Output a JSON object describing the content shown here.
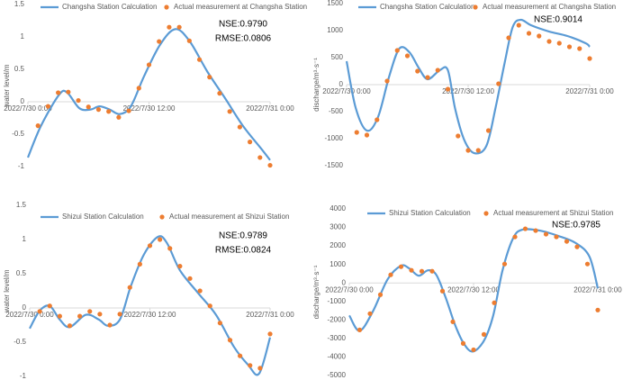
{
  "chart_data": [
    {
      "type": "line",
      "y_label": "water level/m",
      "annotations": [
        "NSE:0.9790",
        "RMSE:0.0806"
      ],
      "xlim": [
        0,
        24
      ],
      "xticks": [
        {
          "value": 0,
          "label": "2022/7/30 0:00"
        },
        {
          "value": 12,
          "label": "2022/7/30 12:00"
        },
        {
          "value": 24,
          "label": "2022/7/31 0:00"
        }
      ],
      "ylim": [
        -1,
        1.5
      ],
      "yticks": [
        -1,
        -0.5,
        0,
        0.5,
        1,
        1.5
      ],
      "series": [
        {
          "name": "Changsha Station Calculation",
          "color": "#5b9bd5",
          "mode": "line",
          "x": [
            0,
            1.3,
            3.1,
            3.9,
            5.1,
            6.2,
            7.1,
            8.1,
            9.1,
            10.2,
            11.5,
            13.1,
            14.6,
            16.0,
            17.8,
            19.6,
            21.3,
            23.1,
            24
          ],
          "values": [
            -0.86,
            -0.37,
            0.11,
            0.14,
            -0.1,
            -0.12,
            -0.07,
            -0.12,
            -0.19,
            -0.07,
            0.39,
            0.88,
            1.12,
            0.94,
            0.46,
            0.04,
            -0.37,
            -0.72,
            -0.9
          ]
        },
        {
          "name": "Actual measurement at Changsha Station",
          "color": "#ed7d31",
          "mode": "markers",
          "x": [
            1,
            2,
            3,
            4,
            5,
            6,
            7,
            8,
            9,
            10,
            11,
            12,
            13,
            14,
            15,
            16,
            17,
            18,
            19,
            20,
            21,
            22,
            23,
            24
          ],
          "values": [
            -0.37,
            -0.07,
            0.14,
            0.15,
            0.02,
            -0.08,
            -0.12,
            -0.15,
            -0.24,
            -0.14,
            0.21,
            0.57,
            0.93,
            1.15,
            1.15,
            0.94,
            0.65,
            0.38,
            0.13,
            -0.15,
            -0.39,
            -0.62,
            -0.86,
            -0.98
          ]
        }
      ]
    },
    {
      "type": "line",
      "y_label": "discharge/m³·s⁻¹",
      "annotations": [
        "NSE:0.9014"
      ],
      "xlim": [
        0,
        24
      ],
      "xticks": [
        {
          "value": 0,
          "label": "2022/7/30 0:00"
        },
        {
          "value": 12,
          "label": "2022/7/30 12:00"
        },
        {
          "value": 24,
          "label": "2022/7/31 0:00"
        }
      ],
      "ylim": [
        -1500,
        1500
      ],
      "yticks": [
        -1500,
        -1000,
        -500,
        0,
        500,
        1000,
        1500
      ],
      "series": [
        {
          "name": "Changsha Station Calculation",
          "color": "#5b9bd5",
          "mode": "line",
          "x": [
            0,
            0.9,
            2.0,
            3.1,
            4.2,
            5.2,
            6.2,
            7.1,
            8.0,
            9.2,
            10.0,
            10.7,
            11.6,
            12.6,
            13.8,
            14.7,
            15.6,
            16.4,
            17.2,
            18.2,
            20.0,
            21.8,
            23.6,
            24
          ],
          "values": [
            433,
            -433,
            -850,
            -600,
            150,
            667,
            600,
            317,
            100,
            267,
            267,
            -433,
            -1017,
            -1267,
            -1133,
            -433,
            400,
            1067,
            1200,
            1100,
            983,
            900,
            767,
            700
          ]
        },
        {
          "name": "Actual measurement at Changsha Station",
          "color": "#ed7d31",
          "mode": "markers",
          "x": [
            1,
            2,
            3,
            4,
            5,
            6,
            7,
            8,
            9,
            10,
            11,
            12,
            13,
            14,
            15,
            16,
            17,
            18,
            19,
            20,
            21,
            22,
            23,
            24
          ],
          "values": [
            -883,
            -933,
            -650,
            67,
            633,
            533,
            250,
            133,
            267,
            -83,
            -950,
            -1217,
            -1217,
            -850,
            17,
            867,
            1100,
            950,
            900,
            800,
            767,
            700,
            667,
            483
          ]
        }
      ]
    },
    {
      "type": "line",
      "y_label": "water level/m",
      "annotations": [
        "NSE:0.9789",
        "RMSE:0.0824"
      ],
      "xlim": [
        0,
        24
      ],
      "xticks": [
        {
          "value": 0,
          "label": "2022/7/30 0:00"
        },
        {
          "value": 12,
          "label": "2022/7/30 12:00"
        },
        {
          "value": 24,
          "label": "2022/7/31 0:00"
        }
      ],
      "ylim": [
        -1,
        1.5
      ],
      "yticks": [
        -1,
        -0.5,
        0,
        0.5,
        1,
        1.5
      ],
      "series": [
        {
          "name": "Shizui Station Calculation",
          "color": "#5b9bd5",
          "mode": "line",
          "x": [
            0,
            1,
            2,
            3,
            4,
            5.6,
            6.9,
            7.8,
            9,
            10.1,
            11.4,
            12.8,
            13.7,
            15,
            16.8,
            18.6,
            20.4,
            21.8,
            22.9,
            24
          ],
          "values": [
            -0.3,
            -0.04,
            0.03,
            -0.17,
            -0.28,
            -0.1,
            -0.17,
            -0.26,
            -0.17,
            0.32,
            0.78,
            1.04,
            0.95,
            0.55,
            0.22,
            -0.1,
            -0.57,
            -0.83,
            -0.96,
            -0.43
          ]
        },
        {
          "name": "Actual measurement at Shizui Station",
          "color": "#ed7d31",
          "mode": "markers",
          "x": [
            1,
            2,
            3,
            4,
            5,
            6,
            7,
            8,
            9,
            10,
            11,
            12,
            13,
            14,
            15,
            16,
            17,
            18,
            19,
            20,
            21,
            22,
            23,
            24
          ],
          "values": [
            -0.05,
            0.03,
            -0.12,
            -0.26,
            -0.12,
            -0.05,
            -0.09,
            -0.25,
            -0.09,
            0.3,
            0.64,
            0.91,
            1.0,
            0.87,
            0.61,
            0.43,
            0.25,
            0.03,
            -0.22,
            -0.47,
            -0.7,
            -0.84,
            -0.88,
            -0.38
          ]
        }
      ]
    },
    {
      "type": "line",
      "y_label": "discharge/m³·s⁻¹",
      "annotations": [
        "NSE:0.9785"
      ],
      "xlim": [
        0,
        24
      ],
      "xticks": [
        {
          "value": 0,
          "label": "2022/7/30 0:00"
        },
        {
          "value": 12,
          "label": "2022/7/30 12:00"
        },
        {
          "value": 24,
          "label": "2022/7/31 0:00"
        }
      ],
      "ylim": [
        -5000,
        4000
      ],
      "yticks": [
        -5000,
        -4000,
        -3000,
        -2000,
        -1000,
        0,
        1000,
        2000,
        3000,
        4000
      ],
      "series": [
        {
          "name": "Shizui Station Calculation",
          "color": "#5b9bd5",
          "mode": "line",
          "x": [
            0,
            1,
            2.3,
            3.7,
            5,
            5.8,
            6.7,
            7.6,
            8.4,
            9.3,
            10.2,
            11,
            11.9,
            13,
            13.9,
            14.8,
            15.8,
            16.7,
            18.4,
            20.2,
            21.9,
            23.2,
            24
          ],
          "values": [
            -1756,
            -2585,
            -1512,
            195,
            927,
            780,
            390,
            683,
            439,
            -780,
            -2244,
            -3220,
            -3707,
            -3122,
            -1756,
            683,
            2390,
            2878,
            2829,
            2537,
            2146,
            1415,
            -293
          ]
        },
        {
          "name": "Actual measurement at Shizui Station",
          "color": "#ed7d31",
          "mode": "markers",
          "x": [
            1,
            2,
            3,
            4,
            5,
            6,
            7,
            8,
            9,
            10,
            11,
            12,
            13,
            14,
            15,
            16,
            17,
            18,
            19,
            20,
            21,
            22,
            23,
            24
          ],
          "values": [
            -2537,
            -1659,
            -634,
            439,
            878,
            683,
            634,
            634,
            -439,
            -2098,
            -3268,
            -3610,
            -2780,
            -1073,
            1024,
            2488,
            2927,
            2829,
            2634,
            2488,
            2244,
            1951,
            1024,
            -1463
          ]
        }
      ]
    }
  ]
}
